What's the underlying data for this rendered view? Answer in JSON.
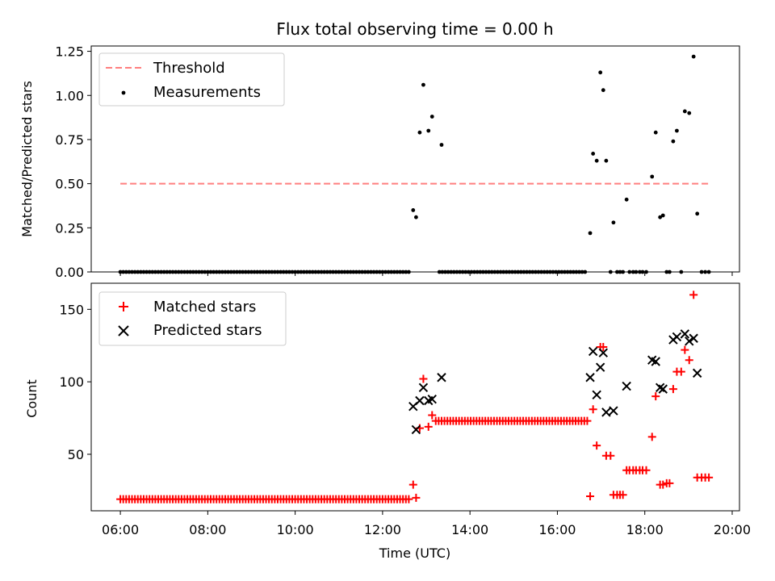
{
  "chart_data": [
    {
      "type": "scatter",
      "title": "Flux total observing time = 0.00 h",
      "ylabel": "Matched/Predicted stars",
      "xlim": [
        "05:20",
        "20:10"
      ],
      "ylim": [
        0,
        1.28
      ],
      "yticks": [
        0.0,
        0.25,
        0.5,
        0.75,
        1.0,
        1.25
      ],
      "ytick_labels": [
        "0.00",
        "0.25",
        "0.50",
        "0.75",
        "1.00",
        "1.25"
      ],
      "legend_placement": "top-left",
      "series": [
        {
          "name": "Threshold",
          "style": "dashed-line",
          "color": "#ff7f7f",
          "x": [
            "06:00",
            "19:30"
          ],
          "y": [
            0.5,
            0.5
          ]
        },
        {
          "name": "Measurements",
          "style": "dot",
          "color": "#000000",
          "points": [
            [
              "12:42",
              0.35
            ],
            [
              "12:46",
              0.31
            ],
            [
              "12:51",
              0.79
            ],
            [
              "12:56",
              1.06
            ],
            [
              "13:03",
              0.8
            ],
            [
              "13:08",
              0.88
            ],
            [
              "13:21",
              0.72
            ],
            [
              "16:45",
              0.22
            ],
            [
              "16:49",
              0.67
            ],
            [
              "16:54",
              0.63
            ],
            [
              "16:59",
              1.13
            ],
            [
              "17:03",
              1.03
            ],
            [
              "17:07",
              0.63
            ],
            [
              "17:17",
              0.28
            ],
            [
              "17:35",
              0.41
            ],
            [
              "18:10",
              0.54
            ],
            [
              "18:15",
              0.79
            ],
            [
              "18:21",
              0.31
            ],
            [
              "18:25",
              0.32
            ],
            [
              "18:39",
              0.74
            ],
            [
              "18:44",
              0.8
            ],
            [
              "18:55",
              0.91
            ],
            [
              "19:01",
              0.9
            ],
            [
              "19:07",
              1.22
            ],
            [
              "19:12",
              0.33
            ]
          ],
          "zero_points": {
            "ranges": [
              [
                "06:00",
                "12:36"
              ],
              [
                "13:18",
                "16:41"
              ]
            ],
            "step_minutes": 4,
            "extra": [
              "17:13",
              "17:22",
              "17:26",
              "17:30",
              "17:39",
              "17:44",
              "17:48",
              "17:53",
              "17:57",
              "18:02",
              "18:30",
              "18:34",
              "18:50",
              "19:18",
              "19:23",
              "19:28"
            ]
          }
        }
      ]
    },
    {
      "type": "scatter",
      "xlabel": "Time (UTC)",
      "ylabel": "Count",
      "xlim": [
        "05:20",
        "20:10"
      ],
      "ylim": [
        11,
        168
      ],
      "xticks": [
        "06:00",
        "08:00",
        "10:00",
        "12:00",
        "14:00",
        "16:00",
        "18:00",
        "20:00"
      ],
      "yticks": [
        50,
        100,
        150
      ],
      "legend_placement": "top-left",
      "series": [
        {
          "name": "Matched stars",
          "style": "plus",
          "color": "#ff0000",
          "points": [
            [
              "12:42",
              29
            ],
            [
              "12:46",
              20
            ],
            [
              "12:51",
              68
            ],
            [
              "12:56",
              102
            ],
            [
              "13:03",
              69
            ],
            [
              "13:08",
              77
            ],
            [
              "16:45",
              21
            ],
            [
              "16:49",
              81
            ],
            [
              "16:54",
              56
            ],
            [
              "16:59",
              124
            ],
            [
              "17:03",
              124
            ],
            [
              "17:07",
              49
            ],
            [
              "17:13",
              49
            ],
            [
              "17:17",
              22
            ],
            [
              "17:22",
              22
            ],
            [
              "17:26",
              22
            ],
            [
              "17:30",
              22
            ],
            [
              "17:35",
              39
            ],
            [
              "17:39",
              39
            ],
            [
              "17:44",
              39
            ],
            [
              "17:48",
              39
            ],
            [
              "17:53",
              39
            ],
            [
              "17:57",
              39
            ],
            [
              "18:02",
              39
            ],
            [
              "18:10",
              62
            ],
            [
              "18:15",
              90
            ],
            [
              "18:21",
              29
            ],
            [
              "18:25",
              29
            ],
            [
              "18:30",
              30
            ],
            [
              "18:34",
              30
            ],
            [
              "18:39",
              95
            ],
            [
              "18:44",
              107
            ],
            [
              "18:50",
              107
            ],
            [
              "18:55",
              122
            ],
            [
              "19:01",
              115
            ],
            [
              "19:07",
              160
            ],
            [
              "19:12",
              34
            ],
            [
              "19:18",
              34
            ],
            [
              "19:23",
              34
            ],
            [
              "19:28",
              34
            ]
          ],
          "constant_runs": [
            {
              "from": "06:00",
              "to": "12:36",
              "step_minutes": 4,
              "value": 19
            },
            {
              "from": "13:13",
              "to": "16:41",
              "step_minutes": 4,
              "value": 73
            }
          ]
        },
        {
          "name": "Predicted stars",
          "style": "x",
          "color": "#000000",
          "points": [
            [
              "12:42",
              83
            ],
            [
              "12:46",
              67
            ],
            [
              "12:51",
              87
            ],
            [
              "12:56",
              96
            ],
            [
              "13:03",
              87
            ],
            [
              "13:08",
              88
            ],
            [
              "13:21",
              103
            ],
            [
              "16:45",
              103
            ],
            [
              "16:49",
              121
            ],
            [
              "16:54",
              91
            ],
            [
              "16:59",
              110
            ],
            [
              "17:03",
              120
            ],
            [
              "17:07",
              79
            ],
            [
              "17:17",
              80
            ],
            [
              "17:35",
              97
            ],
            [
              "18:10",
              115
            ],
            [
              "18:15",
              114
            ],
            [
              "18:21",
              96
            ],
            [
              "18:25",
              95
            ],
            [
              "18:39",
              129
            ],
            [
              "18:44",
              131
            ],
            [
              "18:55",
              133
            ],
            [
              "19:01",
              128
            ],
            [
              "19:07",
              130
            ],
            [
              "19:12",
              106
            ]
          ]
        }
      ]
    }
  ]
}
